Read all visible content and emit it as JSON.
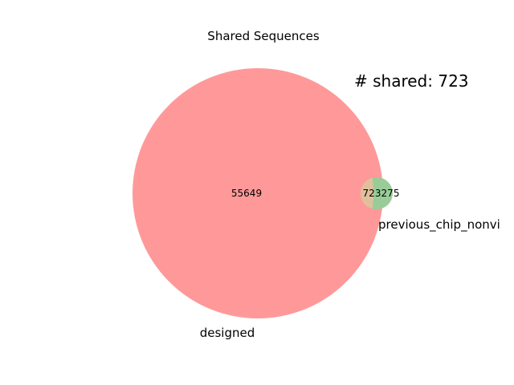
{
  "title": "Shared Sequences",
  "annotation": "# shared: 723",
  "sets": [
    {
      "name": "designed",
      "color": "#ff9999"
    },
    {
      "name": "previous_chip_nonvi",
      "color": "#99cc99"
    }
  ],
  "overlap_color": "#e0c09c",
  "regions": {
    "designed_only": "55649",
    "shared": "723",
    "previous_only": "275"
  }
}
